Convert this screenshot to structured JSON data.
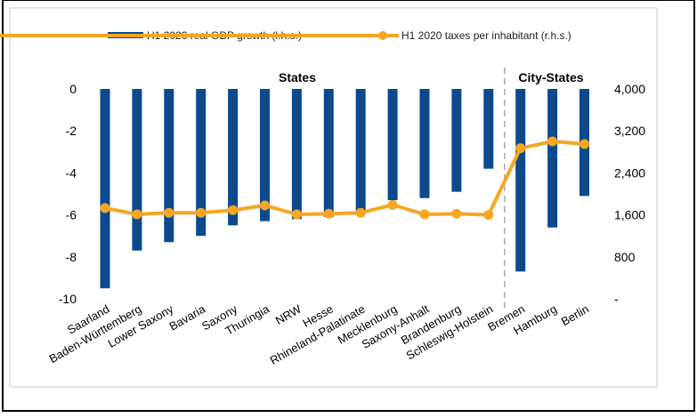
{
  "chart_data": {
    "type": "bar",
    "legend_position": "top",
    "grid": false,
    "categories": [
      "Saarland",
      "Baden-Württemberg",
      "Lower Saxony",
      "Bavaria",
      "Saxony",
      "Thuringia",
      "NRW",
      "Hesse",
      "Rhineland-Palatinate",
      "Mecklenburg",
      "Saxony-Anhalt",
      "Brandenburg",
      "Schleswig-Holstein",
      "Bremen",
      "Hamburg",
      "Berlin"
    ],
    "groups": [
      {
        "label": "States",
        "count": 13
      },
      {
        "label": "City-States",
        "count": 3
      }
    ],
    "series": [
      {
        "name": "H1 2020 real GDP growth (l.h.s.)",
        "type": "bar",
        "axis": "left",
        "color": "#0b4a8f",
        "values": [
          -9.5,
          -7.7,
          -7.3,
          -7.0,
          -6.5,
          -6.3,
          -6.2,
          -6.1,
          -5.8,
          -5.3,
          -5.2,
          -4.9,
          -3.8,
          -8.7,
          -6.6,
          -5.1
        ]
      },
      {
        "name": "H1 2020 taxes per inhabitant (r.h.s.)",
        "type": "line",
        "axis": "right",
        "color": "#f5a623",
        "values": [
          1730,
          1610,
          1640,
          1640,
          1690,
          1780,
          1610,
          1620,
          1640,
          1790,
          1610,
          1620,
          1600,
          2870,
          3000,
          2950
        ]
      }
    ],
    "y_left": {
      "min": -10,
      "max": 0,
      "ticks": [
        "0",
        "-2",
        "-4",
        "-6",
        "-8",
        "-10"
      ],
      "tick_values": [
        0,
        -2,
        -4,
        -6,
        -8,
        -10
      ]
    },
    "y_right": {
      "min": 0,
      "max": 4000,
      "ticks": [
        "4,000",
        "3,200",
        "2,400",
        "1,600",
        "800",
        "-"
      ],
      "tick_values": [
        4000,
        3200,
        2400,
        1600,
        800,
        0
      ]
    }
  }
}
